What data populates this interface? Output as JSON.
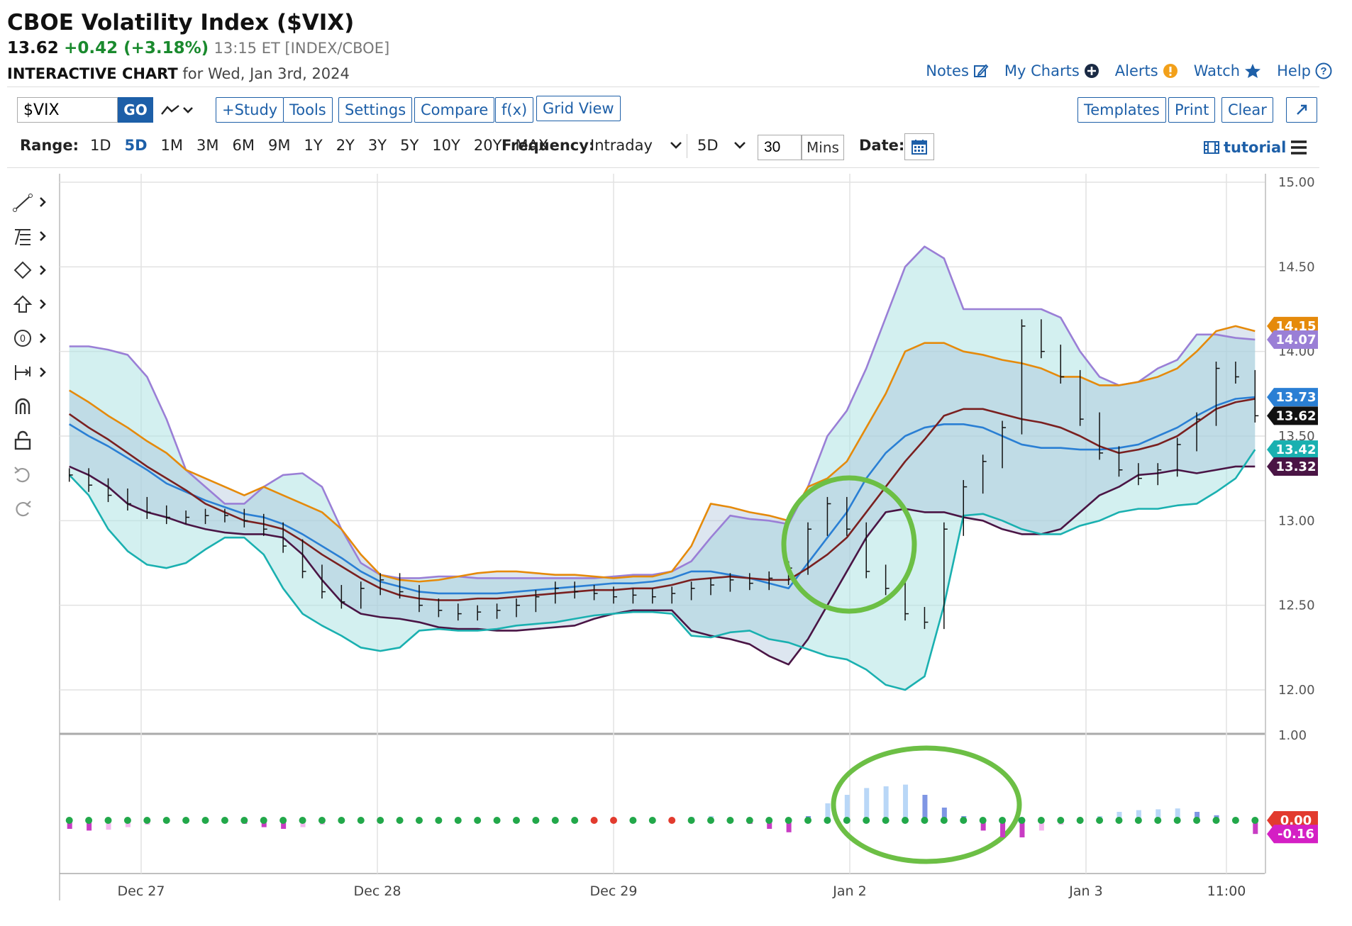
{
  "header": {
    "title": "CBOE Volatility Index ($VIX)",
    "last": "13.62",
    "change": "+0.42 (+3.18%)",
    "meta": "13:15 ET [INDEX/CBOE]",
    "subtitle_bold": "INTERACTIVE CHART",
    "subtitle_rest": " for Wed, Jan 3rd, 2024"
  },
  "top_links": [
    {
      "label": "Notes",
      "icon": "edit-icon"
    },
    {
      "label": "My Charts",
      "icon": "plus-circle-icon"
    },
    {
      "label": "Alerts",
      "icon": "alert-icon"
    },
    {
      "label": "Watch",
      "icon": "star-icon"
    },
    {
      "label": "Help",
      "icon": "help-icon"
    }
  ],
  "toolbar": {
    "symbol_value": "$VIX",
    "go_label": "GO",
    "study_label": "+Study",
    "tools_label": "Tools",
    "settings_label": "Settings",
    "compare_label": "Compare",
    "fx_label": "f(x)",
    "gridview_label": "Grid View",
    "templates_label": "Templates",
    "print_label": "Print",
    "clear_label": "Clear",
    "expand_icon": "expand-icon"
  },
  "range": {
    "label": "Range:",
    "options": [
      "1D",
      "5D",
      "1M",
      "3M",
      "6M",
      "9M",
      "1Y",
      "2Y",
      "3Y",
      "5Y",
      "10Y",
      "20Y",
      "MAX"
    ],
    "active": "5D",
    "frequency_label": "Frequency:",
    "frequency_value": "Intraday",
    "period_value": "5D",
    "mins_value": "30",
    "mins_label": "Mins",
    "date_label": "Date:",
    "tutorial_label": "tutorial"
  },
  "drawing_tools": [
    "line-tool-icon",
    "fib-tool-icon",
    "shape-tool-icon",
    "arrow-tool-icon",
    "text-tool-icon",
    "measure-tool-icon",
    "magnet-icon",
    "lock-icon",
    "undo-icon",
    "redo-icon"
  ],
  "chart_data": {
    "type": "line",
    "x_labels": [
      "Dec 27",
      "Dec 28",
      "Dec 29",
      "Jan 2",
      "Jan 3",
      "11:00"
    ],
    "price_axis": {
      "ticks": [
        "15.00",
        "14.50",
        "14.00",
        "13.50",
        "13.00",
        "12.50",
        "12.00"
      ],
      "range": [
        12.0,
        15.0
      ]
    },
    "osc_axis": {
      "ticks": [
        "1.00"
      ]
    },
    "price_badges": [
      {
        "value": "14.15",
        "color": "#e58a0b"
      },
      {
        "value": "14.07",
        "color": "#9a7fd6"
      },
      {
        "value": "13.73",
        "color": "#2a7fd4"
      },
      {
        "value": "13.62",
        "color": "#111111"
      },
      {
        "value": "13.42",
        "color": "#1ab0b0"
      },
      {
        "value": "13.32",
        "color": "#4a1545"
      }
    ],
    "osc_badges": [
      {
        "value": "0.00",
        "color": "#e23b2e"
      },
      {
        "value": "-0.16",
        "color": "#d41fc4"
      }
    ],
    "series": [
      {
        "color": "#9a7fd6",
        "values": [
          14.03,
          14.03,
          14.01,
          13.98,
          13.85,
          13.6,
          13.3,
          13.2,
          13.1,
          13.1,
          13.2,
          13.27,
          13.28,
          13.2,
          12.95,
          12.75,
          12.68,
          12.66,
          12.66,
          12.67,
          12.67,
          12.66,
          12.66,
          12.66,
          12.66,
          12.66,
          12.66,
          12.66,
          12.67,
          12.68,
          12.68,
          12.7,
          12.76,
          12.9,
          13.03,
          13.01,
          13.0,
          12.98,
          13.2,
          13.5,
          13.65,
          13.9,
          14.2,
          14.5,
          14.62,
          14.55,
          14.25,
          14.25,
          14.25,
          14.25,
          14.25,
          14.2,
          14.0,
          13.85,
          13.8,
          13.82,
          13.9,
          13.95,
          14.1,
          14.1,
          14.08,
          14.07
        ]
      },
      {
        "color": "#e58a0b",
        "values": [
          13.77,
          13.7,
          13.62,
          13.55,
          13.47,
          13.4,
          13.3,
          13.25,
          13.2,
          13.15,
          13.2,
          13.15,
          13.1,
          13.05,
          12.95,
          12.8,
          12.68,
          12.65,
          12.64,
          12.65,
          12.67,
          12.69,
          12.7,
          12.7,
          12.69,
          12.68,
          12.68,
          12.67,
          12.66,
          12.67,
          12.67,
          12.7,
          12.85,
          13.1,
          13.08,
          13.05,
          13.03,
          13.0,
          13.2,
          13.25,
          13.35,
          13.55,
          13.75,
          14.0,
          14.05,
          14.05,
          14.0,
          13.98,
          13.95,
          13.93,
          13.9,
          13.85,
          13.85,
          13.8,
          13.8,
          13.82,
          13.85,
          13.9,
          14.0,
          14.12,
          14.15,
          14.12
        ]
      },
      {
        "color": "#2a7fd4",
        "values": [
          13.57,
          13.5,
          13.44,
          13.37,
          13.3,
          13.22,
          13.17,
          13.12,
          13.08,
          13.04,
          13.02,
          12.98,
          12.92,
          12.85,
          12.78,
          12.7,
          12.64,
          12.61,
          12.58,
          12.57,
          12.57,
          12.57,
          12.57,
          12.58,
          12.59,
          12.6,
          12.61,
          12.62,
          12.63,
          12.63,
          12.64,
          12.66,
          12.7,
          12.7,
          12.68,
          12.66,
          12.63,
          12.6,
          12.75,
          12.9,
          13.05,
          13.25,
          13.4,
          13.5,
          13.55,
          13.57,
          13.57,
          13.55,
          13.5,
          13.45,
          13.43,
          13.43,
          13.42,
          13.42,
          13.43,
          13.45,
          13.5,
          13.55,
          13.62,
          13.68,
          13.72,
          13.73
        ]
      },
      {
        "color": "#7a2020",
        "values": [
          13.63,
          13.55,
          13.48,
          13.4,
          13.32,
          13.25,
          13.18,
          13.1,
          13.05,
          13.0,
          12.98,
          12.95,
          12.88,
          12.8,
          12.73,
          12.66,
          12.6,
          12.56,
          12.54,
          12.53,
          12.53,
          12.54,
          12.54,
          12.55,
          12.56,
          12.57,
          12.58,
          12.59,
          12.59,
          12.6,
          12.6,
          12.62,
          12.65,
          12.66,
          12.67,
          12.66,
          12.65,
          12.65,
          12.72,
          12.8,
          12.9,
          13.05,
          13.2,
          13.35,
          13.48,
          13.62,
          13.66,
          13.66,
          13.63,
          13.6,
          13.58,
          13.55,
          13.5,
          13.44,
          13.4,
          13.42,
          13.45,
          13.5,
          13.58,
          13.66,
          13.7,
          13.72
        ]
      },
      {
        "color": "#4a1545",
        "values": [
          13.32,
          13.27,
          13.2,
          13.1,
          13.05,
          13.02,
          12.98,
          12.95,
          12.93,
          12.92,
          12.92,
          12.9,
          12.8,
          12.65,
          12.52,
          12.45,
          12.43,
          12.42,
          12.4,
          12.37,
          12.36,
          12.36,
          12.35,
          12.35,
          12.36,
          12.37,
          12.38,
          12.42,
          12.45,
          12.47,
          12.47,
          12.47,
          12.35,
          12.32,
          12.3,
          12.27,
          12.2,
          12.15,
          12.3,
          12.5,
          12.7,
          12.9,
          13.05,
          13.07,
          13.05,
          13.05,
          13.02,
          13.0,
          12.95,
          12.92,
          12.92,
          12.95,
          13.05,
          13.15,
          13.2,
          13.27,
          13.28,
          13.3,
          13.28,
          13.3,
          13.32,
          13.32
        ]
      },
      {
        "color": "#1ab0b0",
        "values": [
          13.27,
          13.15,
          12.95,
          12.82,
          12.74,
          12.72,
          12.75,
          12.83,
          12.9,
          12.9,
          12.8,
          12.6,
          12.45,
          12.38,
          12.32,
          12.25,
          12.23,
          12.25,
          12.35,
          12.36,
          12.35,
          12.35,
          12.36,
          12.38,
          12.39,
          12.4,
          12.42,
          12.44,
          12.45,
          12.46,
          12.46,
          12.45,
          12.32,
          12.31,
          12.34,
          12.35,
          12.3,
          12.28,
          12.24,
          12.2,
          12.18,
          12.12,
          12.03,
          12.0,
          12.08,
          12.5,
          13.03,
          13.04,
          13.0,
          12.95,
          12.92,
          12.92,
          12.97,
          13.0,
          13.05,
          13.07,
          13.07,
          13.09,
          13.1,
          13.17,
          13.25,
          13.42
        ]
      }
    ],
    "price_bars": [
      13.27,
      13.21,
      13.15,
      13.1,
      13.05,
      13.02,
      13.02,
      13.03,
      13.03,
      13.0,
      12.95,
      12.85,
      12.7,
      12.58,
      12.52,
      12.6,
      12.65,
      12.58,
      12.5,
      12.47,
      12.45,
      12.46,
      12.47,
      12.5,
      12.55,
      12.6,
      12.58,
      12.57,
      12.55,
      12.56,
      12.55,
      12.57,
      12.6,
      12.62,
      12.65,
      12.63,
      12.66,
      12.72,
      12.95,
      13.1,
      12.95,
      12.7,
      12.6,
      12.45,
      12.4,
      12.95,
      13.2,
      13.35,
      13.55,
      14.15,
      14.0,
      13.85,
      13.6,
      13.4,
      13.3,
      13.25,
      13.3,
      13.45,
      13.6,
      13.9,
      13.85,
      13.62
    ],
    "oscillator": [
      -0.1,
      -0.12,
      -0.11,
      -0.08,
      -0.05,
      -0.02,
      0.0,
      0.0,
      0.0,
      -0.04,
      -0.08,
      -0.1,
      -0.08,
      -0.05,
      -0.02,
      0.0,
      0.0,
      0.0,
      0.0,
      0.0,
      0.02,
      0.03,
      0.01,
      0.0,
      0.0,
      0.0,
      0.0,
      0.0,
      0.0,
      0.0,
      0.0,
      0.0,
      0.04,
      0.05,
      0.0,
      -0.04,
      -0.1,
      -0.14,
      0.05,
      0.2,
      0.3,
      0.38,
      0.4,
      0.42,
      0.3,
      0.15,
      0.05,
      -0.12,
      -0.2,
      -0.2,
      -0.12,
      -0.05,
      0.0,
      0.05,
      0.1,
      0.12,
      0.13,
      0.14,
      0.1,
      0.06,
      0.03,
      -0.16
    ],
    "squeeze_dots_red_range": [
      27,
      31
    ]
  }
}
